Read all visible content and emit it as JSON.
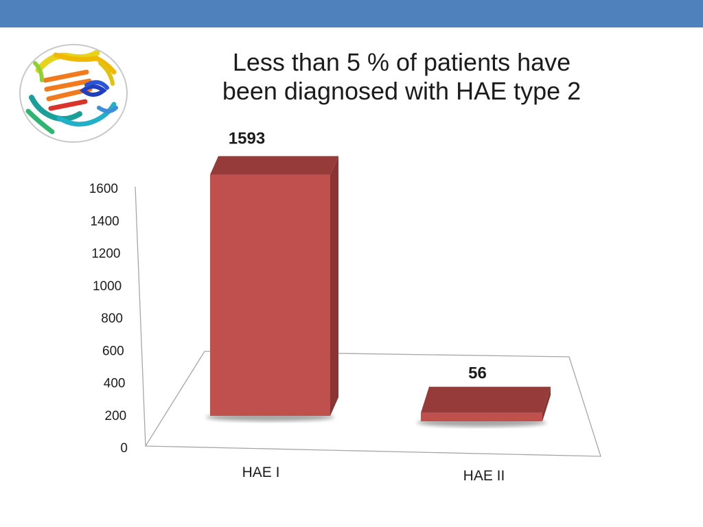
{
  "colors": {
    "band": "#4f81bd",
    "bar_front": "#c0504d",
    "bar_top": "#973a3a",
    "bar_side": "#8b3434",
    "axis_line": "#a6a6a6",
    "text": "#1b1b1b"
  },
  "slide": {
    "logo_icon": "protein-structure-icon"
  },
  "chart_data": {
    "type": "bar",
    "title_lines": [
      "Less than 5 % of patients have",
      "been diagnosed with HAE type 2"
    ],
    "categories": [
      "HAE I",
      "HAE II"
    ],
    "values": [
      1593,
      56
    ],
    "data_labels": [
      "1593",
      "56"
    ],
    "yticks": [
      "0",
      "200",
      "400",
      "600",
      "800",
      "1000",
      "1200",
      "1400",
      "1600"
    ],
    "ylim": [
      0,
      1600
    ],
    "xlabel": "",
    "ylabel": "",
    "grid": false,
    "legend": "none",
    "style": "3d-perspective"
  }
}
